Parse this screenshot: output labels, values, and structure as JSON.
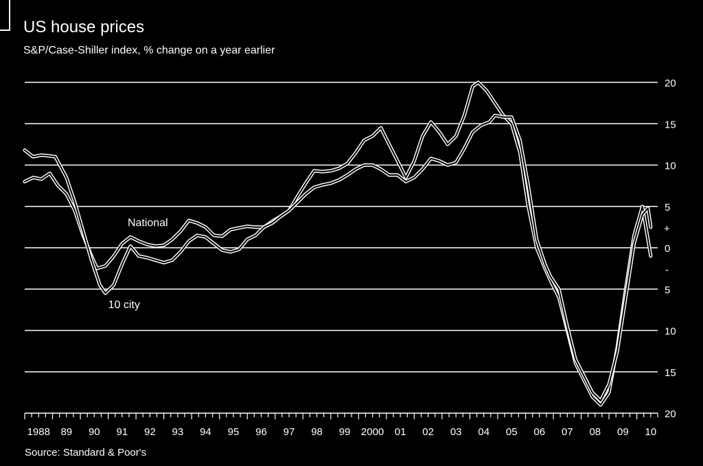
{
  "chart_data": {
    "type": "line",
    "title": "US house prices",
    "subtitle": "S&P/Case-Shiller index, % change on a year earlier",
    "source": "Source: Standard & Poor's",
    "xlabel": "",
    "ylabel": "",
    "ylim": [
      -20,
      20
    ],
    "y_ticks": [
      {
        "value": 20,
        "label": "20"
      },
      {
        "value": 15,
        "label": "15"
      },
      {
        "value": 10,
        "label": "10"
      },
      {
        "value": 5,
        "label": "5"
      },
      {
        "value": 0,
        "label": "0"
      },
      {
        "value": -5,
        "label": "5"
      },
      {
        "value": -10,
        "label": "10"
      },
      {
        "value": -15,
        "label": "15"
      },
      {
        "value": -20,
        "label": "20"
      }
    ],
    "sign_markers": {
      "plus": "+",
      "minus": "-"
    },
    "x_ticks": [
      "1988",
      "89",
      "90",
      "91",
      "92",
      "93",
      "94",
      "95",
      "96",
      "97",
      "98",
      "99",
      "2000",
      "01",
      "02",
      "03",
      "04",
      "05",
      "06",
      "07",
      "08",
      "09",
      "10"
    ],
    "grid": true,
    "series": [
      {
        "name": "National",
        "points": [
          [
            1988.0,
            8
          ],
          [
            1988.3,
            8.5
          ],
          [
            1988.6,
            8.3
          ],
          [
            1988.9,
            9
          ],
          [
            1989.2,
            7.5
          ],
          [
            1989.5,
            6.5
          ],
          [
            1989.8,
            4.5
          ],
          [
            1990.1,
            1.5
          ],
          [
            1990.4,
            -1
          ],
          [
            1990.6,
            -2.5
          ],
          [
            1990.9,
            -2.2
          ],
          [
            1991.2,
            -1
          ],
          [
            1991.5,
            0.5
          ],
          [
            1991.8,
            1.3
          ],
          [
            1992.1,
            0.8
          ],
          [
            1992.4,
            0.4
          ],
          [
            1992.7,
            0.2
          ],
          [
            1993.0,
            0.3
          ],
          [
            1993.3,
            1.0
          ],
          [
            1993.6,
            2.0
          ],
          [
            1993.9,
            3.3
          ],
          [
            1994.2,
            3.0
          ],
          [
            1994.5,
            2.5
          ],
          [
            1994.8,
            1.5
          ],
          [
            1995.1,
            1.4
          ],
          [
            1995.4,
            2.2
          ],
          [
            1995.7,
            2.4
          ],
          [
            1996.0,
            2.6
          ],
          [
            1996.3,
            2.5
          ],
          [
            1996.6,
            2.5
          ],
          [
            1996.9,
            3.2
          ],
          [
            1997.2,
            3.8
          ],
          [
            1997.5,
            4.5
          ],
          [
            1997.8,
            6.2
          ],
          [
            1998.1,
            7.8
          ],
          [
            1998.4,
            9.3
          ],
          [
            1998.7,
            9.2
          ],
          [
            1999.0,
            9.3
          ],
          [
            1999.3,
            9.6
          ],
          [
            1999.6,
            10.2
          ],
          [
            1999.9,
            11.5
          ],
          [
            2000.2,
            13.0
          ],
          [
            2000.5,
            13.5
          ],
          [
            2000.8,
            14.5
          ],
          [
            2001.1,
            12.5
          ],
          [
            2001.4,
            10.5
          ],
          [
            2001.7,
            8.5
          ],
          [
            2002.0,
            10.5
          ],
          [
            2002.3,
            13.5
          ],
          [
            2002.6,
            15.2
          ],
          [
            2002.9,
            14.0
          ],
          [
            2003.2,
            12.5
          ],
          [
            2003.5,
            13.5
          ],
          [
            2003.8,
            16.0
          ],
          [
            2004.1,
            19.5
          ],
          [
            2004.3,
            20.0
          ],
          [
            2004.6,
            19.0
          ],
          [
            2004.9,
            17.5
          ],
          [
            2005.2,
            16.0
          ],
          [
            2005.5,
            15.0
          ],
          [
            2005.8,
            11.5
          ],
          [
            2006.1,
            5.0
          ],
          [
            2006.4,
            0
          ],
          [
            2006.7,
            -2.5
          ],
          [
            2006.9,
            -4.0
          ],
          [
            2007.2,
            -6.0
          ],
          [
            2007.5,
            -10.0
          ],
          [
            2007.8,
            -14.0
          ],
          [
            2008.1,
            -16.0
          ],
          [
            2008.4,
            -18.0
          ],
          [
            2008.7,
            -19.0
          ],
          [
            2009.0,
            -17.5
          ],
          [
            2009.3,
            -12.0
          ],
          [
            2009.6,
            -5.0
          ],
          [
            2009.9,
            1.5
          ],
          [
            2010.2,
            5.0
          ],
          [
            2010.5,
            -1.0
          ]
        ]
      },
      {
        "name": "10 city",
        "points": [
          [
            1988.0,
            11.8
          ],
          [
            1988.3,
            11.0
          ],
          [
            1988.6,
            11.2
          ],
          [
            1988.9,
            11.1
          ],
          [
            1989.1,
            11.0
          ],
          [
            1989.5,
            8.5
          ],
          [
            1989.8,
            5.5
          ],
          [
            1990.1,
            2.0
          ],
          [
            1990.4,
            -1.5
          ],
          [
            1990.7,
            -4.5
          ],
          [
            1990.9,
            -5.5
          ],
          [
            1991.2,
            -4.5
          ],
          [
            1991.5,
            -2.0
          ],
          [
            1991.8,
            0.2
          ],
          [
            1992.1,
            -1.0
          ],
          [
            1992.4,
            -1.2
          ],
          [
            1992.7,
            -1.5
          ],
          [
            1993.0,
            -1.8
          ],
          [
            1993.3,
            -1.5
          ],
          [
            1993.6,
            -0.5
          ],
          [
            1993.9,
            0.8
          ],
          [
            1994.2,
            1.5
          ],
          [
            1994.5,
            1.3
          ],
          [
            1994.8,
            0.5
          ],
          [
            1995.1,
            -0.3
          ],
          [
            1995.4,
            -0.5
          ],
          [
            1995.7,
            -0.2
          ],
          [
            1996.0,
            1.0
          ],
          [
            1996.3,
            1.5
          ],
          [
            1996.6,
            2.5
          ],
          [
            1996.9,
            3.0
          ],
          [
            1997.2,
            3.8
          ],
          [
            1997.5,
            4.5
          ],
          [
            1997.8,
            5.5
          ],
          [
            1998.1,
            6.5
          ],
          [
            1998.4,
            7.3
          ],
          [
            1998.7,
            7.6
          ],
          [
            1999.0,
            7.8
          ],
          [
            1999.3,
            8.2
          ],
          [
            1999.6,
            8.8
          ],
          [
            1999.9,
            9.5
          ],
          [
            2000.2,
            10.0
          ],
          [
            2000.5,
            10.0
          ],
          [
            2000.8,
            9.5
          ],
          [
            2001.1,
            8.8
          ],
          [
            2001.4,
            8.8
          ],
          [
            2001.7,
            8.0
          ],
          [
            2002.0,
            8.5
          ],
          [
            2002.3,
            9.5
          ],
          [
            2002.6,
            10.8
          ],
          [
            2002.9,
            10.5
          ],
          [
            2003.2,
            10.0
          ],
          [
            2003.5,
            10.3
          ],
          [
            2003.8,
            12.0
          ],
          [
            2004.1,
            14.0
          ],
          [
            2004.4,
            14.8
          ],
          [
            2004.7,
            15.2
          ],
          [
            2004.9,
            16.0
          ],
          [
            2005.2,
            15.8
          ],
          [
            2005.5,
            15.8
          ],
          [
            2005.8,
            13.0
          ],
          [
            2006.1,
            7.5
          ],
          [
            2006.4,
            1.0
          ],
          [
            2006.7,
            -2.0
          ],
          [
            2006.9,
            -3.5
          ],
          [
            2007.2,
            -5.0
          ],
          [
            2007.5,
            -9.5
          ],
          [
            2007.8,
            -13.5
          ],
          [
            2008.1,
            -15.5
          ],
          [
            2008.4,
            -17.5
          ],
          [
            2008.7,
            -18.5
          ],
          [
            2009.0,
            -16.5
          ],
          [
            2009.3,
            -12.5
          ],
          [
            2009.6,
            -6.0
          ],
          [
            2009.9,
            0.5
          ],
          [
            2010.2,
            4.0
          ],
          [
            2010.4,
            4.8
          ],
          [
            2010.5,
            2.5
          ]
        ]
      }
    ],
    "annotations": [
      {
        "text": "National",
        "x": 1991.7,
        "y": 2.6
      },
      {
        "text": "10 city",
        "x": 1991.0,
        "y": -7.3
      }
    ]
  }
}
